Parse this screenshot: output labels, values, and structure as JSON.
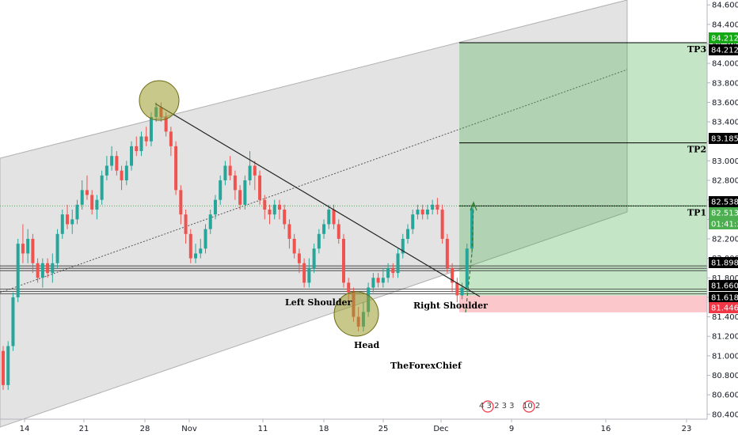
{
  "chart_data": {
    "type": "candlestick",
    "watermark": "TheForexChief",
    "x_ticks": [
      "14",
      "21",
      "28",
      "Nov",
      "11",
      "18",
      "25",
      "Dec",
      "9",
      "16",
      "23"
    ],
    "y_ticks": [
      "84.600",
      "84.400",
      "84.200",
      "84.000",
      "83.800",
      "83.600",
      "83.400",
      "83.200",
      "83.000",
      "82.800",
      "82.600",
      "82.400",
      "82.200",
      "82.000",
      "81.800",
      "81.600",
      "81.400",
      "81.200",
      "81.000",
      "80.800",
      "80.600",
      "80.400"
    ],
    "ylim": [
      80.35,
      84.65
    ],
    "price_tags": [
      {
        "value": "84.212",
        "bg": "#14a814",
        "fg": "#ffffff"
      },
      {
        "value": "84.212",
        "bg": "#000000",
        "fg": "#ffffff"
      },
      {
        "value": "83.185",
        "bg": "#000000",
        "fg": "#ffffff"
      },
      {
        "value": "82.538",
        "bg": "#000000",
        "fg": "#ffffff"
      },
      {
        "value": "82.513",
        "bg": "#4caf50",
        "fg": "#ffffff"
      },
      {
        "value": "01:41:38",
        "bg": "#4caf50",
        "fg": "#ffffff"
      },
      {
        "value": "81.898",
        "bg": "#000000",
        "fg": "#ffffff"
      },
      {
        "value": "81.660",
        "bg": "#000000",
        "fg": "#ffffff"
      },
      {
        "value": "81.618",
        "bg": "#000000",
        "fg": "#ffffff"
      },
      {
        "value": "81.446",
        "bg": "#f23645",
        "fg": "#ffffff"
      }
    ],
    "targets": [
      {
        "label": "TP3",
        "price": 84.212
      },
      {
        "label": "TP2",
        "price": 83.185
      },
      {
        "label": "TP1",
        "price": 82.538
      }
    ],
    "entry_price": 81.618,
    "stop_price": 81.446,
    "support_levels": [
      81.898,
      81.66
    ],
    "annotations": {
      "left_shoulder": "Left Shoulder",
      "head": "Head",
      "right_shoulder": "Right Shoulder"
    },
    "event_badges": [
      "4 3 2 3 3",
      "10 2"
    ],
    "colors": {
      "up": "#26a69a",
      "down": "#ef5350",
      "target_zone": "#4caf50",
      "stop_zone": "#f23645",
      "channel": "#d4d4d4"
    },
    "candles": [
      [
        81.05,
        80.7,
        81.1,
        80.65
      ],
      [
        80.7,
        81.1,
        81.15,
        80.65
      ],
      [
        81.1,
        81.6,
        81.65,
        81.05
      ],
      [
        81.6,
        82.15,
        82.2,
        81.55
      ],
      [
        82.15,
        82.05,
        82.35,
        81.95
      ],
      [
        82.05,
        82.2,
        82.3,
        81.95
      ],
      [
        82.2,
        81.95,
        82.25,
        81.85
      ],
      [
        81.95,
        81.8,
        82.0,
        81.75
      ],
      [
        81.8,
        81.95,
        82.0,
        81.7
      ],
      [
        81.95,
        81.85,
        82.0,
        81.8
      ],
      [
        81.85,
        81.95,
        82.05,
        81.75
      ],
      [
        81.95,
        82.25,
        82.3,
        81.9
      ],
      [
        82.25,
        82.45,
        82.5,
        82.2
      ],
      [
        82.45,
        82.35,
        82.55,
        82.3
      ],
      [
        82.35,
        82.4,
        82.5,
        82.25
      ],
      [
        82.4,
        82.55,
        82.6,
        82.35
      ],
      [
        82.55,
        82.7,
        82.8,
        82.5
      ],
      [
        82.7,
        82.65,
        82.85,
        82.6
      ],
      [
        82.65,
        82.5,
        82.7,
        82.45
      ],
      [
        82.5,
        82.6,
        82.65,
        82.4
      ],
      [
        82.6,
        82.85,
        82.9,
        82.55
      ],
      [
        82.85,
        82.95,
        83.05,
        82.8
      ],
      [
        82.95,
        83.05,
        83.15,
        82.9
      ],
      [
        83.05,
        82.9,
        83.1,
        82.85
      ],
      [
        82.9,
        82.8,
        82.95,
        82.7
      ],
      [
        82.8,
        82.95,
        83.0,
        82.75
      ],
      [
        82.95,
        83.15,
        83.2,
        82.9
      ],
      [
        83.15,
        83.1,
        83.25,
        83.05
      ],
      [
        83.1,
        83.25,
        83.3,
        83.05
      ],
      [
        83.25,
        83.2,
        83.35,
        83.15
      ],
      [
        83.2,
        83.45,
        83.5,
        83.15
      ],
      [
        83.45,
        83.55,
        83.6,
        83.4
      ],
      [
        83.55,
        83.45,
        83.6,
        83.4
      ],
      [
        83.45,
        83.3,
        83.5,
        83.25
      ],
      [
        83.3,
        83.15,
        83.35,
        83.05
      ],
      [
        83.15,
        82.7,
        83.2,
        82.65
      ],
      [
        82.7,
        82.45,
        82.75,
        82.35
      ],
      [
        82.45,
        82.25,
        82.5,
        82.15
      ],
      [
        82.25,
        82.0,
        82.3,
        81.95
      ],
      [
        82.0,
        82.05,
        82.15,
        81.95
      ],
      [
        82.05,
        82.1,
        82.2,
        82.0
      ],
      [
        82.1,
        82.3,
        82.35,
        82.05
      ],
      [
        82.3,
        82.45,
        82.5,
        82.25
      ],
      [
        82.45,
        82.6,
        82.65,
        82.4
      ],
      [
        82.6,
        82.8,
        82.85,
        82.55
      ],
      [
        82.8,
        82.95,
        83.0,
        82.75
      ],
      [
        82.95,
        82.85,
        83.05,
        82.8
      ],
      [
        82.85,
        82.7,
        82.9,
        82.6
      ],
      [
        82.7,
        82.55,
        82.75,
        82.5
      ],
      [
        82.55,
        82.8,
        82.85,
        82.5
      ],
      [
        82.8,
        82.95,
        83.1,
        82.75
      ],
      [
        82.95,
        82.85,
        83.0,
        82.7
      ],
      [
        82.85,
        82.6,
        82.9,
        82.55
      ],
      [
        82.6,
        82.5,
        82.65,
        82.4
      ],
      [
        82.5,
        82.45,
        82.55,
        82.35
      ],
      [
        82.45,
        82.55,
        82.6,
        82.4
      ],
      [
        82.55,
        82.5,
        82.6,
        82.4
      ],
      [
        82.5,
        82.35,
        82.55,
        82.3
      ],
      [
        82.35,
        82.2,
        82.4,
        82.1
      ],
      [
        82.2,
        82.05,
        82.25,
        82.0
      ],
      [
        82.05,
        81.95,
        82.1,
        81.85
      ],
      [
        81.95,
        81.75,
        82.0,
        81.7
      ],
      [
        81.75,
        81.9,
        82.0,
        81.7
      ],
      [
        81.9,
        82.1,
        82.15,
        81.85
      ],
      [
        82.1,
        82.25,
        82.3,
        82.05
      ],
      [
        82.25,
        82.35,
        82.4,
        82.2
      ],
      [
        82.35,
        82.5,
        82.55,
        82.3
      ],
      [
        82.5,
        82.35,
        82.55,
        82.3
      ],
      [
        82.35,
        82.2,
        82.4,
        82.15
      ],
      [
        82.2,
        81.75,
        82.25,
        81.7
      ],
      [
        81.75,
        81.65,
        81.8,
        81.55
      ],
      [
        81.65,
        81.4,
        81.7,
        81.35
      ],
      [
        81.4,
        81.3,
        81.5,
        81.25
      ],
      [
        81.3,
        81.45,
        81.55,
        81.25
      ],
      [
        81.45,
        81.7,
        81.75,
        81.4
      ],
      [
        81.7,
        81.8,
        81.85,
        81.65
      ],
      [
        81.8,
        81.75,
        81.85,
        81.7
      ],
      [
        81.75,
        81.8,
        81.9,
        81.7
      ],
      [
        81.8,
        81.9,
        81.95,
        81.75
      ],
      [
        81.9,
        81.85,
        81.95,
        81.8
      ],
      [
        81.85,
        82.05,
        82.1,
        81.8
      ],
      [
        82.05,
        82.2,
        82.25,
        82.0
      ],
      [
        82.2,
        82.3,
        82.35,
        82.15
      ],
      [
        82.3,
        82.45,
        82.5,
        82.25
      ],
      [
        82.45,
        82.5,
        82.55,
        82.4
      ],
      [
        82.5,
        82.45,
        82.55,
        82.4
      ],
      [
        82.45,
        82.5,
        82.55,
        82.4
      ],
      [
        82.5,
        82.55,
        82.6,
        82.45
      ],
      [
        82.55,
        82.5,
        82.62,
        82.45
      ],
      [
        82.5,
        82.2,
        82.55,
        82.15
      ],
      [
        82.2,
        81.9,
        82.25,
        81.85
      ],
      [
        81.9,
        81.75,
        81.95,
        81.65
      ],
      [
        81.75,
        81.62,
        81.8,
        81.55
      ],
      [
        81.62,
        81.7,
        81.75,
        81.58
      ],
      [
        81.7,
        82.1,
        82.15,
        81.65
      ],
      [
        82.1,
        82.513,
        82.55,
        82.05
      ]
    ]
  }
}
